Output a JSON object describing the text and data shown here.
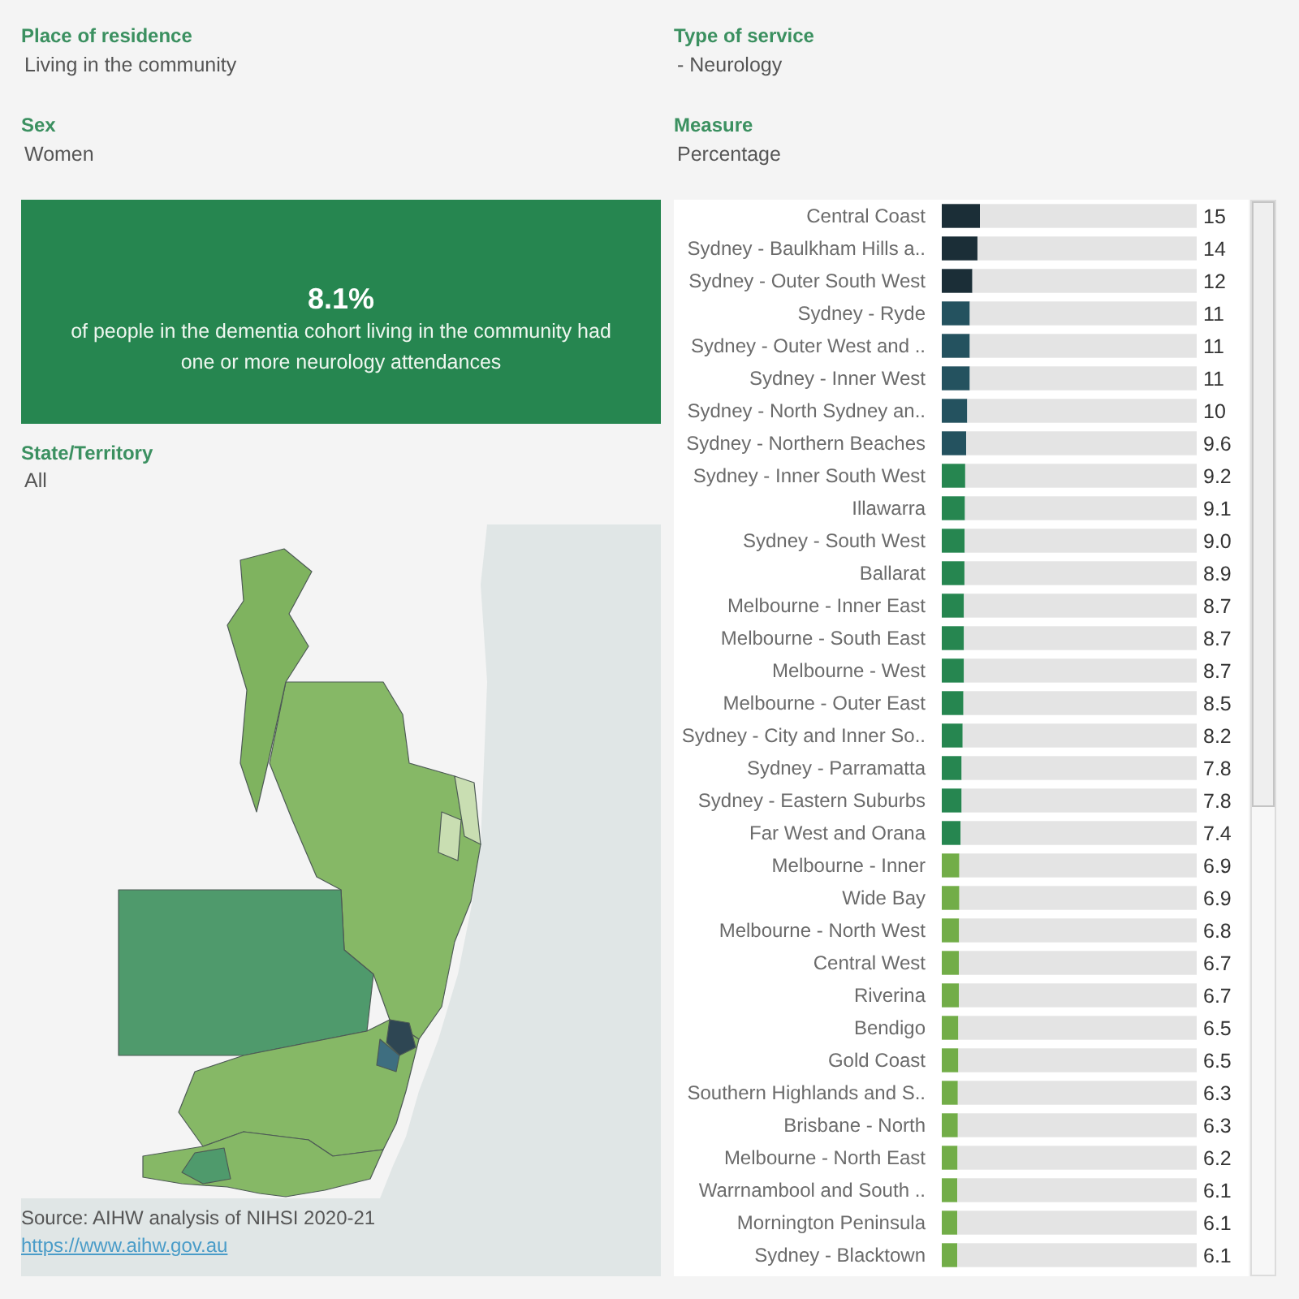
{
  "chart_data": [
    {
      "type": "other",
      "annotations": [
        "Place of residence",
        "Living in the community",
        "Type of service",
        "- Neurology",
        "Sex",
        "Women",
        "Measure",
        "Percentage"
      ]
    },
    {
      "type": "other",
      "title": "8.1%",
      "subtitle": "of people in the dementia cohort living in the community had one or more neurology attendances"
    },
    {
      "type": "other",
      "title": "State/Territory",
      "subtitle": "All",
      "annotations": [
        "Source: AIHW analysis of NIHSI 2020-21",
        "https://www.aihw.gov.au"
      ]
    },
    {
      "type": "bar",
      "orientation": "horizontal",
      "stacked": true,
      "categories": [
        "Central Coast",
        "Sydney - Baulkham Hills a..",
        "Sydney - Outer South West",
        "Sydney - Ryde",
        "Sydney - Outer West and ..",
        "Sydney - Inner West",
        "Sydney - North Sydney an..",
        "Sydney - Northern Beaches",
        "Sydney - Inner South West",
        "Illawarra",
        "Sydney - South West",
        "Ballarat",
        "Melbourne - Inner East",
        "Melbourne - South East",
        "Melbourne - West",
        "Melbourne - Outer East",
        "Sydney - City and Inner So..",
        "Sydney - Parramatta",
        "Sydney - Eastern Suburbs",
        "Far West and Orana",
        "Melbourne - Inner",
        "Wide Bay",
        "Melbourne - North West",
        "Central West",
        "Riverina",
        "Bendigo",
        "Gold Coast",
        "Southern Highlands and S..",
        "Brisbane - North",
        "Melbourne - North East",
        "Warrnambool and South ..",
        "Mornington Peninsula",
        "Sydney - Blacktown"
      ],
      "series": [
        {
          "values": [
            15,
            14,
            12,
            11,
            11,
            11,
            10,
            9.6,
            9.2,
            9.1,
            9.0,
            8.9,
            8.7,
            8.7,
            8.7,
            8.5,
            8.2,
            7.8,
            7.8,
            7.4,
            6.9,
            6.9,
            6.8,
            6.7,
            6.7,
            6.5,
            6.5,
            6.3,
            6.3,
            6.2,
            6.1,
            6.1,
            6.1
          ],
          "value_labels": [
            "15",
            "14",
            "12",
            "11",
            "11",
            "11",
            "10",
            "9.6",
            "9.2",
            "9.1",
            "9.0",
            "8.9",
            "8.7",
            "8.7",
            "8.7",
            "8.5",
            "8.2",
            "7.8",
            "7.8",
            "7.4",
            "6.9",
            "6.9",
            "6.8",
            "6.7",
            "6.7",
            "6.5",
            "6.5",
            "6.3",
            "6.3",
            "6.2",
            "6.1",
            "6.1",
            "6.1"
          ],
          "colors": [
            "#1b2e37",
            "#1b2e37",
            "#1b2e37",
            "#24525f",
            "#24525f",
            "#24525f",
            "#24525f",
            "#24525f",
            "#268650",
            "#268650",
            "#268650",
            "#268650",
            "#268650",
            "#268650",
            "#268650",
            "#268650",
            "#268650",
            "#268650",
            "#268650",
            "#268650",
            "#72ad48",
            "#72ad48",
            "#72ad48",
            "#72ad48",
            "#72ad48",
            "#72ad48",
            "#72ad48",
            "#72ad48",
            "#72ad48",
            "#72ad48",
            "#72ad48",
            "#72ad48",
            "#72ad48"
          ]
        },
        {
          "color": "#e4e4e4",
          "values": [
            85,
            86,
            88,
            89,
            89,
            89,
            90,
            90.4,
            90.8,
            90.9,
            91,
            91.1,
            91.3,
            91.3,
            91.3,
            91.5,
            91.8,
            92.2,
            92.2,
            92.6,
            93.1,
            93.1,
            93.2,
            93.3,
            93.3,
            93.5,
            93.5,
            93.7,
            93.7,
            93.8,
            93.9,
            93.9,
            93.9
          ]
        }
      ],
      "xlim": [
        0,
        100
      ],
      "tick_labels": "y"
    }
  ]
}
